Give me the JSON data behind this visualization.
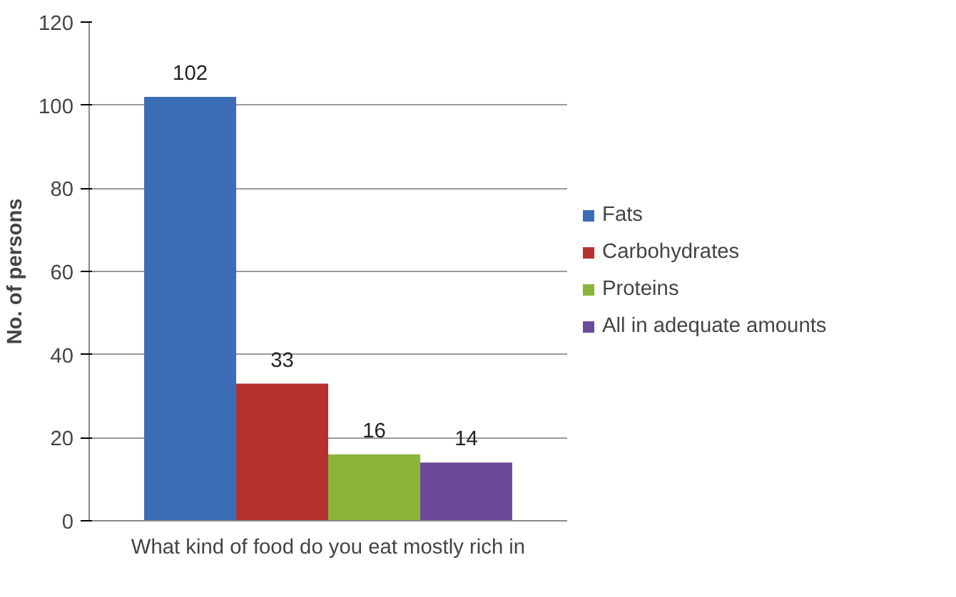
{
  "chart_data": {
    "type": "bar",
    "ylabel": "No. of persons",
    "categories": [
      "What kind of food do you eat mostly rich in"
    ],
    "series": [
      {
        "name": "Fats",
        "color": "#3a6db5",
        "values": [
          102
        ]
      },
      {
        "name": "Carbohydrates",
        "color": "#b5312f",
        "values": [
          33
        ]
      },
      {
        "name": "Proteins",
        "color": "#8cb43a",
        "values": [
          16
        ]
      },
      {
        "name": "All in adequate amounts",
        "color": "#6c4a9a",
        "values": [
          14
        ]
      }
    ],
    "ylim": [
      0,
      120
    ],
    "yticks": [
      0,
      20,
      40,
      60,
      80,
      100,
      120
    ],
    "grid": "y",
    "legend": "right",
    "data_labels": true
  }
}
